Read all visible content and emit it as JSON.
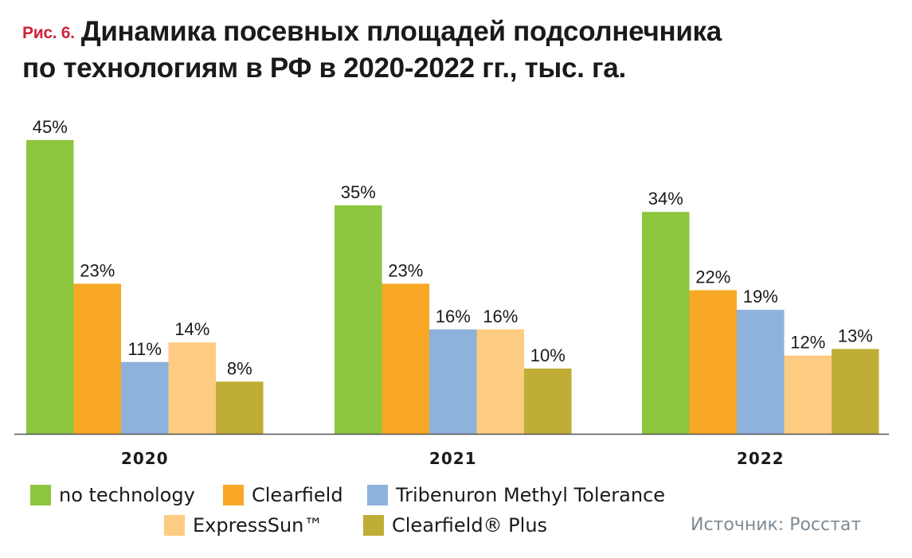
{
  "title": {
    "fig_label": "Рис. 6.",
    "line1": "Динамика посевных площадей подсолнечника",
    "line2": "по технологиям в РФ в 2020-2022 гг., тыс. га."
  },
  "source": "Источник: Росстат",
  "chart_data": {
    "type": "bar",
    "categories": [
      "2020",
      "2021",
      "2022"
    ],
    "series": [
      {
        "name": "no technology",
        "color": "#8dc63f",
        "values": [
          45,
          35,
          34
        ],
        "labels": [
          "45%",
          "35%",
          "34%"
        ]
      },
      {
        "name": "Clearfield",
        "color": "#f9a825",
        "values": [
          23,
          23,
          22
        ],
        "labels": [
          "23%",
          "23%",
          "22%"
        ]
      },
      {
        "name": "Tribenuron Methyl Tolerance",
        "color": "#8db2dc",
        "values": [
          11,
          16,
          19
        ],
        "labels": [
          "11%",
          "16%",
          "19%"
        ]
      },
      {
        "name": "ExpressSun™",
        "color": "#fdcb82",
        "values": [
          14,
          16,
          12
        ],
        "labels": [
          "14%",
          "16%",
          "12%"
        ]
      },
      {
        "name": "Clearfield® Plus",
        "color": "#c0ad36",
        "values": [
          8,
          10,
          13
        ],
        "labels": [
          "8%",
          "10%",
          "13%"
        ]
      }
    ],
    "ylim": [
      0,
      50
    ],
    "grid": false,
    "legend_placement": "bottom"
  }
}
